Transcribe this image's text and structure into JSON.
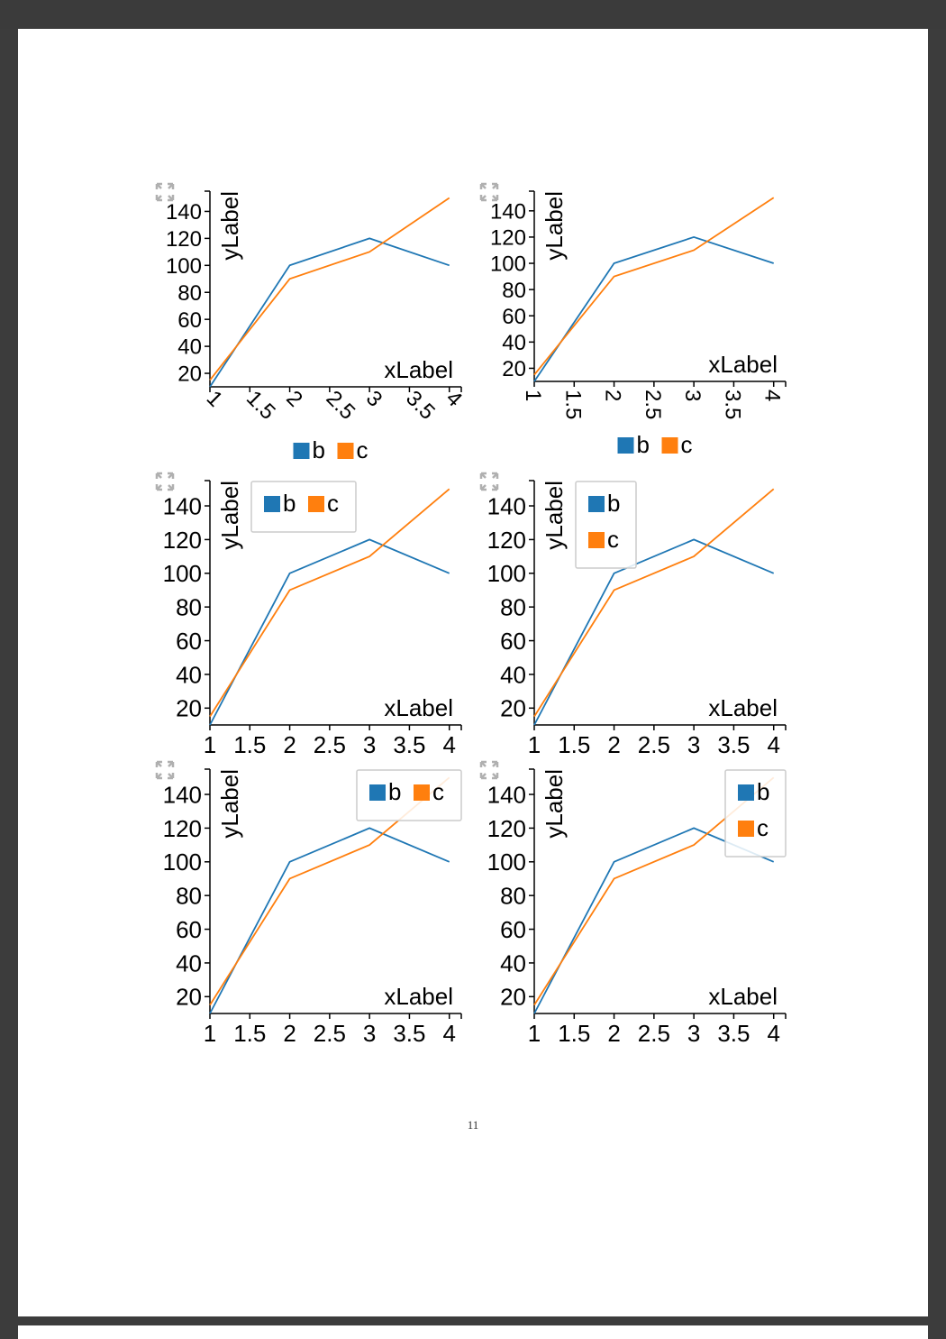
{
  "viewer": {
    "page_number": "11"
  },
  "colors": {
    "series_b": "#1f77b4",
    "series_c": "#ff7f0e",
    "axis": "#000000",
    "legend_border": "#cccccc",
    "expand_icon": "#b0b0b0"
  },
  "chart_data": [
    {
      "type": "line",
      "x": [
        1,
        2,
        3,
        4
      ],
      "series": [
        {
          "name": "b",
          "values": [
            10,
            100,
            120,
            100
          ]
        },
        {
          "name": "c",
          "values": [
            15,
            90,
            110,
            150
          ]
        }
      ],
      "xlabel": "xLabel",
      "ylabel": "yLabel",
      "xlim": [
        1,
        4.15
      ],
      "ylim": [
        10,
        155
      ],
      "xticks": [
        "1",
        "1.5",
        "2",
        "2.5",
        "3",
        "3.5",
        "4"
      ],
      "yticks": [
        "20",
        "40",
        "60",
        "80",
        "100",
        "120",
        "140"
      ],
      "xtick_rotation": 45,
      "legend": {
        "placement": "bottom",
        "layout": "horizontal",
        "framed": false
      },
      "grid": false
    },
    {
      "type": "line",
      "x": [
        1,
        2,
        3,
        4
      ],
      "series": [
        {
          "name": "b",
          "values": [
            10,
            100,
            120,
            100
          ]
        },
        {
          "name": "c",
          "values": [
            15,
            90,
            110,
            150
          ]
        }
      ],
      "xlabel": "xLabel",
      "ylabel": "yLabel",
      "xlim": [
        1,
        4.15
      ],
      "ylim": [
        10,
        155
      ],
      "xticks": [
        "1",
        "1.5",
        "2",
        "2.5",
        "3",
        "3.5",
        "4"
      ],
      "yticks": [
        "20",
        "40",
        "60",
        "80",
        "100",
        "120",
        "140"
      ],
      "xtick_rotation": 90,
      "legend": {
        "placement": "bottom",
        "layout": "horizontal",
        "framed": false
      },
      "grid": false
    },
    {
      "type": "line",
      "x": [
        1,
        2,
        3,
        4
      ],
      "series": [
        {
          "name": "b",
          "values": [
            10,
            100,
            120,
            100
          ]
        },
        {
          "name": "c",
          "values": [
            15,
            90,
            110,
            150
          ]
        }
      ],
      "xlabel": "xLabel",
      "ylabel": "yLabel",
      "xlim": [
        1,
        4.15
      ],
      "ylim": [
        10,
        155
      ],
      "xticks": [
        "1",
        "1.5",
        "2",
        "2.5",
        "3",
        "3.5",
        "4"
      ],
      "yticks": [
        "20",
        "40",
        "60",
        "80",
        "100",
        "120",
        "140"
      ],
      "xtick_rotation": 0,
      "legend": {
        "placement": "top-left",
        "layout": "horizontal",
        "framed": true
      },
      "grid": false
    },
    {
      "type": "line",
      "x": [
        1,
        2,
        3,
        4
      ],
      "series": [
        {
          "name": "b",
          "values": [
            10,
            100,
            120,
            100
          ]
        },
        {
          "name": "c",
          "values": [
            15,
            90,
            110,
            150
          ]
        }
      ],
      "xlabel": "xLabel",
      "ylabel": "yLabel",
      "xlim": [
        1,
        4.15
      ],
      "ylim": [
        10,
        155
      ],
      "xticks": [
        "1",
        "1.5",
        "2",
        "2.5",
        "3",
        "3.5",
        "4"
      ],
      "yticks": [
        "20",
        "40",
        "60",
        "80",
        "100",
        "120",
        "140"
      ],
      "xtick_rotation": 0,
      "legend": {
        "placement": "top-left",
        "layout": "vertical",
        "framed": true
      },
      "grid": false
    },
    {
      "type": "line",
      "x": [
        1,
        2,
        3,
        4
      ],
      "series": [
        {
          "name": "b",
          "values": [
            10,
            100,
            120,
            100
          ]
        },
        {
          "name": "c",
          "values": [
            15,
            90,
            110,
            150
          ]
        }
      ],
      "xlabel": "xLabel",
      "ylabel": "yLabel",
      "xlim": [
        1,
        4.15
      ],
      "ylim": [
        10,
        155
      ],
      "xticks": [
        "1",
        "1.5",
        "2",
        "2.5",
        "3",
        "3.5",
        "4"
      ],
      "yticks": [
        "20",
        "40",
        "60",
        "80",
        "100",
        "120",
        "140"
      ],
      "xtick_rotation": 0,
      "legend": {
        "placement": "top-right",
        "layout": "horizontal",
        "framed": true
      },
      "grid": false
    },
    {
      "type": "line",
      "x": [
        1,
        2,
        3,
        4
      ],
      "series": [
        {
          "name": "b",
          "values": [
            10,
            100,
            120,
            100
          ]
        },
        {
          "name": "c",
          "values": [
            15,
            90,
            110,
            150
          ]
        }
      ],
      "xlabel": "xLabel",
      "ylabel": "yLabel",
      "xlim": [
        1,
        4.15
      ],
      "ylim": [
        10,
        155
      ],
      "xticks": [
        "1",
        "1.5",
        "2",
        "2.5",
        "3",
        "3.5",
        "4"
      ],
      "yticks": [
        "20",
        "40",
        "60",
        "80",
        "100",
        "120",
        "140"
      ],
      "xtick_rotation": 0,
      "legend": {
        "placement": "top-right",
        "layout": "vertical",
        "framed": true
      },
      "grid": false
    }
  ]
}
